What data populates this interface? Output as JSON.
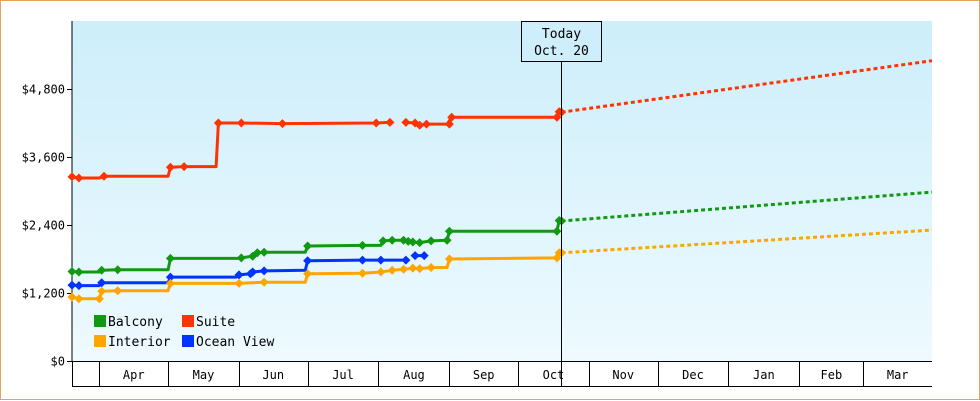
{
  "chart_data": {
    "type": "line",
    "ylim": [
      0,
      6000
    ],
    "y_ticks": [
      0,
      1200,
      2400,
      3600,
      4800
    ],
    "y_tick_labels": [
      "$0",
      "$1,200",
      "$2,400",
      "$3,600",
      "$4,800"
    ],
    "x_start": "2024-03-20",
    "x_end": "2025-03-31",
    "months": [
      {
        "label": "Apr",
        "start": "2024-04-01"
      },
      {
        "label": "May",
        "start": "2024-05-01"
      },
      {
        "label": "Jun",
        "start": "2024-06-01"
      },
      {
        "label": "Jul",
        "start": "2024-07-01"
      },
      {
        "label": "Aug",
        "start": "2024-08-01"
      },
      {
        "label": "Sep",
        "start": "2024-09-01"
      },
      {
        "label": "Oct",
        "start": "2024-10-01"
      },
      {
        "label": "Nov",
        "start": "2024-11-01"
      },
      {
        "label": "Dec",
        "start": "2024-12-01"
      },
      {
        "label": "Jan",
        "start": "2025-01-01"
      },
      {
        "label": "Feb",
        "start": "2025-02-01"
      },
      {
        "label": "Mar",
        "start": "2025-03-01"
      }
    ],
    "today": {
      "line1": "Today",
      "line2": "Oct. 20",
      "date": "2024-10-20"
    },
    "series": [
      {
        "name": "Suite",
        "color": "#ff3300",
        "points": [
          [
            "2024-03-20",
            3250
          ],
          [
            "2024-03-23",
            3230
          ],
          [
            "2024-04-01",
            3230
          ],
          [
            "2024-04-03",
            3260
          ],
          [
            "2024-05-01",
            3260
          ],
          [
            "2024-05-02",
            3420
          ],
          [
            "2024-05-08",
            3430
          ],
          [
            "2024-05-22",
            3430
          ],
          [
            "2024-05-23",
            4200
          ],
          [
            "2024-06-02",
            4200
          ],
          [
            "2024-06-20",
            4190
          ],
          [
            "2024-07-31",
            4200
          ],
          [
            "2024-08-06",
            4210
          ],
          [
            "2024-08-13",
            4210
          ],
          [
            "2024-08-17",
            4200
          ],
          [
            "2024-08-19",
            4160
          ],
          [
            "2024-08-22",
            4180
          ],
          [
            "2024-08-31",
            4180
          ],
          [
            "2024-09-02",
            4300
          ],
          [
            "2024-10-18",
            4300
          ],
          [
            "2024-10-19",
            4400
          ],
          [
            "2024-10-20",
            4390
          ]
        ],
        "gaps_after": [
          "2024-08-06"
        ],
        "markers": [
          "2024-03-20",
          "2024-03-23",
          "2024-04-03",
          "2024-05-02",
          "2024-05-08",
          "2024-05-23",
          "2024-06-02",
          "2024-06-20",
          "2024-07-31",
          "2024-08-06",
          "2024-08-13",
          "2024-08-17",
          "2024-08-19",
          "2024-08-22",
          "2024-09-01",
          "2024-09-02",
          "2024-10-18",
          "2024-10-19",
          "2024-10-20"
        ],
        "projection": [
          [
            "2024-10-20",
            4390
          ],
          [
            "2025-03-31",
            5300
          ]
        ]
      },
      {
        "name": "Balcony",
        "color": "#119911",
        "points": [
          [
            "2024-03-20",
            1580
          ],
          [
            "2024-03-23",
            1570
          ],
          [
            "2024-04-01",
            1570
          ],
          [
            "2024-04-02",
            1600
          ],
          [
            "2024-04-09",
            1610
          ],
          [
            "2024-05-01",
            1610
          ],
          [
            "2024-05-02",
            1810
          ],
          [
            "2024-06-01",
            1810
          ],
          [
            "2024-06-02",
            1820
          ],
          [
            "2024-06-07",
            1850
          ],
          [
            "2024-06-09",
            1910
          ],
          [
            "2024-06-12",
            1920
          ],
          [
            "2024-06-30",
            1920
          ],
          [
            "2024-07-01",
            2030
          ],
          [
            "2024-07-25",
            2040
          ],
          [
            "2024-08-02",
            2040
          ],
          [
            "2024-08-03",
            2120
          ],
          [
            "2024-08-07",
            2130
          ],
          [
            "2024-08-12",
            2130
          ],
          [
            "2024-08-14",
            2110
          ],
          [
            "2024-08-16",
            2100
          ],
          [
            "2024-08-19",
            2090
          ],
          [
            "2024-08-24",
            2120
          ],
          [
            "2024-08-31",
            2130
          ],
          [
            "2024-09-01",
            2290
          ],
          [
            "2024-10-18",
            2290
          ],
          [
            "2024-10-19",
            2480
          ],
          [
            "2024-10-20",
            2470
          ]
        ],
        "gaps_after": [],
        "markers": [
          "2024-03-20",
          "2024-03-23",
          "2024-04-02",
          "2024-04-09",
          "2024-05-02",
          "2024-06-02",
          "2024-06-07",
          "2024-06-09",
          "2024-06-12",
          "2024-07-01",
          "2024-07-25",
          "2024-08-03",
          "2024-08-07",
          "2024-08-12",
          "2024-08-14",
          "2024-08-16",
          "2024-08-19",
          "2024-08-24",
          "2024-08-31",
          "2024-09-01",
          "2024-10-18",
          "2024-10-19",
          "2024-10-20"
        ],
        "projection": [
          [
            "2024-10-20",
            2470
          ],
          [
            "2025-03-31",
            2980
          ]
        ]
      },
      {
        "name": "Ocean View",
        "color": "#0033ff",
        "points": [
          [
            "2024-03-20",
            1340
          ],
          [
            "2024-03-23",
            1330
          ],
          [
            "2024-04-01",
            1330
          ],
          [
            "2024-04-02",
            1380
          ],
          [
            "2024-05-01",
            1380
          ],
          [
            "2024-05-02",
            1480
          ],
          [
            "2024-05-31",
            1480
          ],
          [
            "2024-06-01",
            1520
          ],
          [
            "2024-06-06",
            1540
          ],
          [
            "2024-06-07",
            1570
          ],
          [
            "2024-06-12",
            1590
          ],
          [
            "2024-06-30",
            1600
          ],
          [
            "2024-07-01",
            1770
          ],
          [
            "2024-07-25",
            1780
          ],
          [
            "2024-08-02",
            1780
          ],
          [
            "2024-08-13",
            1780
          ],
          [
            "2024-08-17",
            1860
          ],
          [
            "2024-08-21",
            1860
          ]
        ],
        "gaps_after": [
          "2024-08-13"
        ],
        "markers": [
          "2024-03-20",
          "2024-03-23",
          "2024-04-02",
          "2024-05-02",
          "2024-06-01",
          "2024-06-06",
          "2024-06-07",
          "2024-06-12",
          "2024-07-01",
          "2024-07-25",
          "2024-08-02",
          "2024-08-13",
          "2024-08-17",
          "2024-08-21"
        ],
        "projection": null
      },
      {
        "name": "Interior",
        "color": "#ffa500",
        "points": [
          [
            "2024-03-20",
            1130
          ],
          [
            "2024-03-23",
            1100
          ],
          [
            "2024-04-01",
            1100
          ],
          [
            "2024-04-02",
            1230
          ],
          [
            "2024-04-09",
            1240
          ],
          [
            "2024-05-01",
            1240
          ],
          [
            "2024-05-02",
            1370
          ],
          [
            "2024-06-01",
            1370
          ],
          [
            "2024-06-12",
            1390
          ],
          [
            "2024-06-30",
            1390
          ],
          [
            "2024-07-01",
            1540
          ],
          [
            "2024-07-25",
            1550
          ],
          [
            "2024-08-02",
            1570
          ],
          [
            "2024-08-07",
            1600
          ],
          [
            "2024-08-12",
            1620
          ],
          [
            "2024-08-16",
            1640
          ],
          [
            "2024-08-19",
            1630
          ],
          [
            "2024-08-24",
            1650
          ],
          [
            "2024-08-31",
            1650
          ],
          [
            "2024-09-01",
            1800
          ],
          [
            "2024-10-18",
            1820
          ],
          [
            "2024-10-19",
            1910
          ],
          [
            "2024-10-20",
            1910
          ]
        ],
        "gaps_after": [],
        "markers": [
          "2024-03-20",
          "2024-03-23",
          "2024-04-01",
          "2024-04-02",
          "2024-04-09",
          "2024-05-02",
          "2024-06-01",
          "2024-06-12",
          "2024-07-01",
          "2024-07-25",
          "2024-08-02",
          "2024-08-07",
          "2024-08-12",
          "2024-08-16",
          "2024-08-19",
          "2024-08-24",
          "2024-09-01",
          "2024-10-18",
          "2024-10-19",
          "2024-10-20"
        ],
        "projection": [
          [
            "2024-10-20",
            1910
          ],
          [
            "2025-03-31",
            2310
          ]
        ]
      }
    ],
    "legend": [
      {
        "label": "Balcony",
        "color": "#119911"
      },
      {
        "label": "Suite",
        "color": "#ff3300"
      },
      {
        "label": "Interior",
        "color": "#ffa500"
      },
      {
        "label": "Ocean View",
        "color": "#0033ff"
      }
    ]
  }
}
